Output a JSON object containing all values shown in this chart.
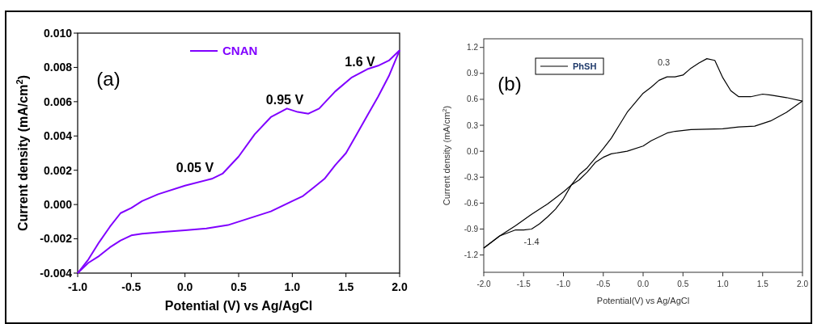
{
  "chart_data": [
    {
      "type": "line",
      "xlabel": "Potential (V) vs Ag/AgCl",
      "ylabel": "Current density (mA/cm$^{2}$)",
      "xlim": [
        -1.0,
        2.0
      ],
      "xticks": [
        {
          "value": -1,
          "label": "-1.0"
        },
        -0.5,
        {
          "value": 0,
          "label": "0.0"
        },
        0.5,
        {
          "value": 1,
          "label": "1.0"
        },
        1.5,
        {
          "value": 2,
          "label": "2.0"
        }
      ],
      "ylim": [
        -0.004,
        0.01
      ],
      "yticks": [
        {
          "value": -0.004,
          "label": "-0.004"
        },
        {
          "value": -0.002,
          "label": "-0.002"
        },
        {
          "value": 0,
          "label": "0.000"
        },
        {
          "value": 0.002,
          "label": "0.002"
        },
        {
          "value": 0.004,
          "label": "0.004"
        },
        {
          "value": 0.006,
          "label": "0.006"
        },
        {
          "value": 0.008,
          "label": "0.008"
        },
        {
          "value": 0.01,
          "label": "0.010"
        }
      ],
      "legend": "top",
      "grid": false,
      "series": [
        {
          "name": "CNAN",
          "color": "#8000ff",
          "x": [
            -1.0,
            -0.9,
            -0.8,
            -0.7,
            -0.6,
            -0.5,
            -0.4,
            -0.25,
            0,
            0.25,
            0.35,
            0.5,
            0.65,
            0.8,
            0.95,
            1.05,
            1.15,
            1.25,
            1.4,
            1.55,
            1.7,
            1.8,
            1.9,
            2.0
          ],
          "values": [
            -0.004,
            -0.0032,
            -0.0022,
            -0.0013,
            -0.0005,
            -0.0002,
            0.0002,
            0.0006,
            0.0011,
            0.0015,
            0.0018,
            0.0028,
            0.0041,
            0.0051,
            0.0056,
            0.0054,
            0.0053,
            0.0056,
            0.0066,
            0.0074,
            0.0079,
            0.0081,
            0.0084,
            0.009
          ]
        },
        {
          "color": "#8000ff",
          "x": [
            2.0,
            1.9,
            1.8,
            1.7,
            1.6,
            1.5,
            1.4,
            1.3,
            1.2,
            1.1,
            1.0,
            0.8,
            0.6,
            0.4,
            0.2,
            0,
            -0.2,
            -0.4,
            -0.5,
            -0.6,
            -0.7,
            -0.8,
            -0.9,
            -1.0
          ],
          "values": [
            0.009,
            0.0075,
            0.0063,
            0.0052,
            0.0041,
            0.003,
            0.0023,
            0.0015,
            0.001,
            0.0005,
            0.0002,
            -0.0004,
            -0.0008,
            -0.0012,
            -0.0014,
            -0.0015,
            -0.0016,
            -0.0017,
            -0.0018,
            -0.0021,
            -0.0025,
            -0.003,
            -0.0034,
            -0.004
          ]
        }
      ],
      "annotations": [
        "(a)",
        "0.05 V",
        "0.95 V",
        "1.6 V"
      ]
    },
    {
      "type": "line",
      "xlabel": "Potential(V) vs Ag/AgCl",
      "ylabel": "Current density (mA/cm$^{2}$)",
      "xlim": [
        -2.0,
        2.0
      ],
      "xticks": [
        {
          "value": -2,
          "label": "-2.0"
        },
        -1.5,
        {
          "value": -1,
          "label": "-1.0"
        },
        -0.5,
        {
          "value": 0,
          "label": "0.0"
        },
        0.5,
        {
          "value": 1,
          "label": "1.0"
        },
        1.5,
        {
          "value": 2,
          "label": "2.0"
        }
      ],
      "ylim": [
        -1.4,
        1.3
      ],
      "yticks": [
        -1.2,
        -0.9,
        -0.6,
        -0.3,
        {
          "value": 0,
          "label": "0.0"
        },
        0.3,
        0.6,
        0.9,
        1.2
      ],
      "legend": "top left",
      "grid": false,
      "series": [
        {
          "name": "PhSH",
          "color": "#000000",
          "x": [
            -2.0,
            -1.8,
            -1.6,
            -1.5,
            -1.4,
            -1.3,
            -1.2,
            -1.1,
            -1.0,
            -0.9,
            -0.8,
            -0.7,
            -0.6,
            -0.5,
            -0.4,
            -0.3,
            -0.2,
            -0.1,
            0,
            0.1,
            0.2,
            0.3,
            0.4,
            0.5,
            0.6,
            0.7,
            0.8,
            0.9,
            1.0,
            1.1,
            1.2,
            1.35,
            1.5,
            1.6,
            1.8,
            2.0
          ],
          "values": [
            -1.12,
            -0.98,
            -0.91,
            -0.91,
            -0.9,
            -0.84,
            -0.76,
            -0.67,
            -0.55,
            -0.39,
            -0.27,
            -0.19,
            -0.08,
            0.03,
            0.15,
            0.3,
            0.45,
            0.56,
            0.67,
            0.74,
            0.82,
            0.86,
            0.86,
            0.88,
            0.96,
            1.02,
            1.07,
            1.05,
            0.85,
            0.7,
            0.63,
            0.63,
            0.66,
            0.65,
            0.62,
            0.58
          ]
        },
        {
          "color": "#000000",
          "x": [
            2.0,
            1.8,
            1.6,
            1.4,
            1.2,
            1.0,
            0.6,
            0.4,
            0.3,
            0.1,
            0,
            -0.2,
            -0.4,
            -0.5,
            -0.6,
            -0.7,
            -0.8,
            -0.9,
            -1.0,
            -1.2,
            -1.4,
            -1.6,
            -1.8,
            -2.0
          ],
          "values": [
            0.58,
            0.45,
            0.35,
            0.29,
            0.28,
            0.26,
            0.25,
            0.23,
            0.21,
            0.12,
            0.06,
            0.0,
            -0.03,
            -0.07,
            -0.13,
            -0.24,
            -0.33,
            -0.39,
            -0.47,
            -0.61,
            -0.73,
            -0.86,
            -0.98,
            -1.12
          ]
        }
      ],
      "annotations": [
        "(b)",
        {
          "text": "0.3",
          "x": 0.3,
          "y": 0.86
        },
        {
          "text": "-1.4",
          "x": -1.4,
          "y": -0.9
        }
      ]
    }
  ]
}
